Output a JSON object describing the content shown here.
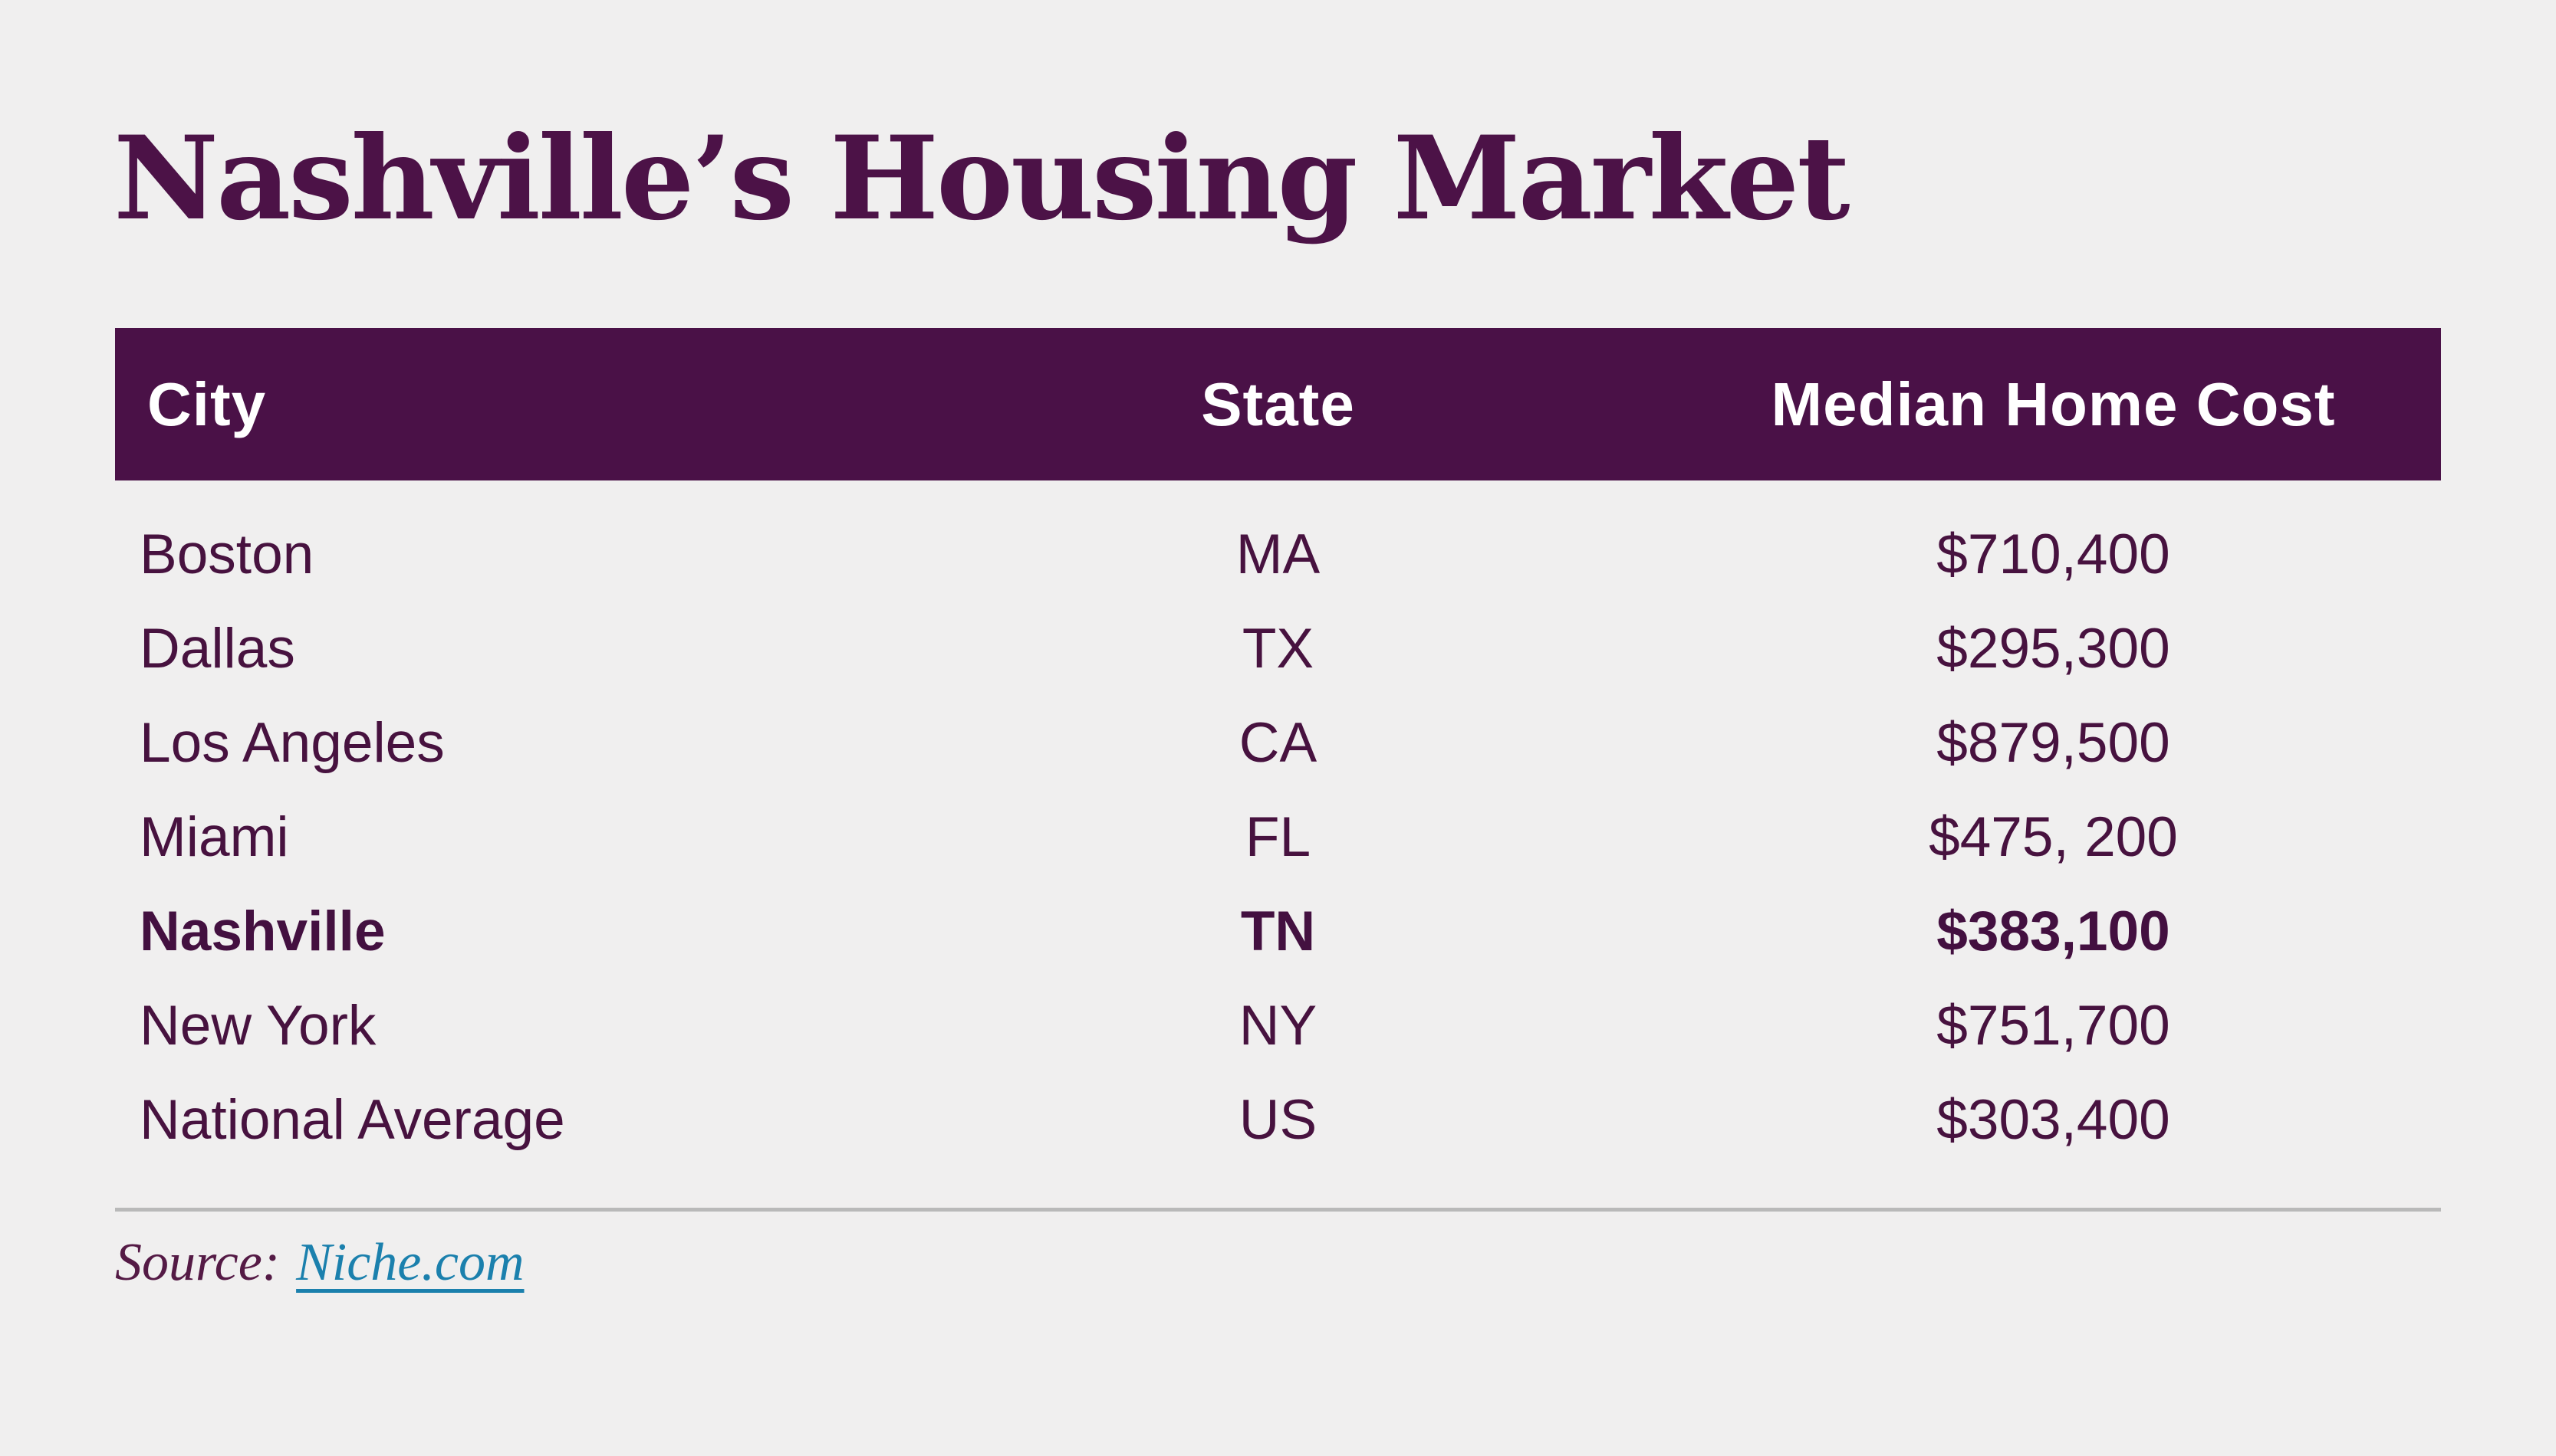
{
  "page": {
    "title": "Nashville’s Housing Market",
    "background_color": "#f0efef"
  },
  "colors": {
    "accent_purple": "#4a1147",
    "title_purple": "#4c1247",
    "body_text_purple": "#47123f",
    "header_text_white": "#ffffff",
    "link_teal": "#1b80ad",
    "divider_gray": "#b9b9b9"
  },
  "table": {
    "columns": [
      "City",
      "State",
      "Median Home Cost"
    ],
    "rows": [
      {
        "city": "Boston",
        "state": "MA",
        "cost": "$710,400",
        "highlight": false
      },
      {
        "city": "Dallas",
        "state": "TX",
        "cost": "$295,300",
        "highlight": false
      },
      {
        "city": "Los Angeles",
        "state": "CA",
        "cost": "$879,500",
        "highlight": false
      },
      {
        "city": "Miami",
        "state": "FL",
        "cost": "$475, 200",
        "highlight": false
      },
      {
        "city": "Nashville",
        "state": "TN",
        "cost": "$383,100",
        "highlight": true
      },
      {
        "city": "New York",
        "state": "NY",
        "cost": "$751,700",
        "highlight": false
      },
      {
        "city": "National Average",
        "state": "US",
        "cost": "$303,400",
        "highlight": false
      }
    ]
  },
  "source": {
    "label": "Source:",
    "link_text": "Niche.com"
  },
  "chart_data": {
    "type": "table",
    "title": "Nashville’s Housing Market",
    "columns": [
      "City",
      "State",
      "Median Home Cost"
    ],
    "highlighted_row": "Nashville",
    "rows": [
      {
        "city": "Boston",
        "state": "MA",
        "median_home_cost": 710400,
        "display_cost": "$710,400"
      },
      {
        "city": "Dallas",
        "state": "TX",
        "median_home_cost": 295300,
        "display_cost": "$295,300"
      },
      {
        "city": "Los Angeles",
        "state": "CA",
        "median_home_cost": 879500,
        "display_cost": "$879,500"
      },
      {
        "city": "Miami",
        "state": "FL",
        "median_home_cost": 475200,
        "display_cost": "$475, 200"
      },
      {
        "city": "Nashville",
        "state": "TN",
        "median_home_cost": 383100,
        "display_cost": "$383,100"
      },
      {
        "city": "New York",
        "state": "NY",
        "median_home_cost": 751700,
        "display_cost": "$751,700"
      },
      {
        "city": "National Average",
        "state": "US",
        "median_home_cost": 303400,
        "display_cost": "$303,400"
      }
    ],
    "source": "Niche.com"
  }
}
